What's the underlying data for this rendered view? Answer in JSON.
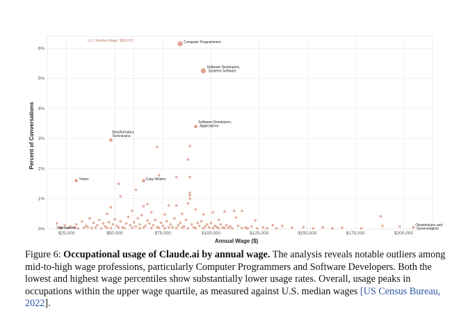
{
  "chart_data": {
    "type": "scatter",
    "xlabel": "Annual Wage ($)",
    "ylabel": "Percent of Conversations",
    "xlim": [
      15000,
      215000
    ],
    "ylim": [
      0,
      6.4
    ],
    "x_ticks": [
      25000,
      50000,
      75000,
      100000,
      125000,
      150000,
      175000,
      200000
    ],
    "x_tick_labels": [
      "$25,000",
      "$50,000",
      "$75,000",
      "$100,000",
      "$125,000",
      "$150,000",
      "$175,000",
      "$200,000"
    ],
    "y_ticks": [
      0,
      1,
      2,
      3,
      4,
      5,
      6
    ],
    "y_tick_labels": [
      "0%",
      "1%",
      "2%",
      "3%",
      "4%",
      "5%",
      "6%"
    ],
    "grid": true,
    "marker_color": "#d9917a",
    "median": {
      "x": 60070,
      "label": "U.S. Median Wage: $60,070",
      "color": "#c8795e"
    },
    "labeled_points": [
      {
        "label": "Computer Programmers",
        "x": 84000,
        "y": 6.15
      },
      {
        "label": "Software Developers, Systems Software",
        "x": 96000,
        "y": 5.25
      },
      {
        "label": "Software Developers, Applications",
        "x": 92000,
        "y": 3.4
      },
      {
        "label": "Bioinformatics Technicians",
        "x": 48000,
        "y": 2.95
      },
      {
        "label": "Copy Writers",
        "x": 65000,
        "y": 1.6
      },
      {
        "label": "Tutors",
        "x": 30000,
        "y": 1.6
      },
      {
        "label": "Shampooers",
        "x": 22000,
        "y": 0.02
      },
      {
        "label": "Obstetricians and Gynecologists",
        "x": 205000,
        "y": 0.05
      }
    ],
    "points": [
      [
        72000,
        2.72
      ],
      [
        89000,
        2.75
      ],
      [
        88000,
        2.3
      ],
      [
        82000,
        1.72
      ],
      [
        89000,
        1.72
      ],
      [
        73000,
        1.78
      ],
      [
        52000,
        1.5
      ],
      [
        61000,
        1.3
      ],
      [
        89000,
        1.2
      ],
      [
        89000,
        1.12
      ],
      [
        53000,
        1.08
      ],
      [
        89000,
        1.0
      ],
      [
        67000,
        0.82
      ],
      [
        65000,
        0.75
      ],
      [
        78000,
        0.78
      ],
      [
        82000,
        0.78
      ],
      [
        88000,
        0.85
      ],
      [
        92000,
        0.65
      ],
      [
        101000,
        0.55
      ],
      [
        107000,
        0.58
      ],
      [
        112000,
        0.6
      ],
      [
        116000,
        0.6
      ],
      [
        48000,
        0.72
      ],
      [
        46000,
        0.5
      ],
      [
        59000,
        0.6
      ],
      [
        69000,
        0.55
      ],
      [
        76000,
        0.48
      ],
      [
        85000,
        0.5
      ],
      [
        96000,
        0.48
      ],
      [
        104000,
        0.3
      ],
      [
        113000,
        0.38
      ],
      [
        123000,
        0.28
      ],
      [
        132000,
        0.12
      ],
      [
        137000,
        0.1
      ],
      [
        148000,
        0.06
      ],
      [
        158000,
        0.05
      ],
      [
        168000,
        0.04
      ],
      [
        188000,
        0.42
      ],
      [
        189000,
        0.1
      ],
      [
        198000,
        0.08
      ],
      [
        20000,
        0.18
      ],
      [
        24000,
        0.12
      ],
      [
        27000,
        0.08
      ],
      [
        30000,
        0.15
      ],
      [
        33000,
        0.25
      ],
      [
        35000,
        0.1
      ],
      [
        37000,
        0.35
      ],
      [
        39000,
        0.2
      ],
      [
        41000,
        0.12
      ],
      [
        42000,
        0.3
      ],
      [
        44000,
        0.18
      ],
      [
        45000,
        0.08
      ],
      [
        47000,
        0.22
      ],
      [
        49000,
        0.15
      ],
      [
        50000,
        0.32
      ],
      [
        51000,
        0.1
      ],
      [
        53000,
        0.25
      ],
      [
        54000,
        0.05
      ],
      [
        56000,
        0.18
      ],
      [
        57000,
        0.4
      ],
      [
        58000,
        0.12
      ],
      [
        60000,
        0.22
      ],
      [
        61000,
        0.08
      ],
      [
        62000,
        0.35
      ],
      [
        63000,
        0.15
      ],
      [
        64000,
        0.45
      ],
      [
        66000,
        0.1
      ],
      [
        67000,
        0.28
      ],
      [
        68000,
        0.18
      ],
      [
        70000,
        0.12
      ],
      [
        71000,
        0.3
      ],
      [
        72000,
        0.06
      ],
      [
        74000,
        0.2
      ],
      [
        75000,
        0.1
      ],
      [
        77000,
        0.25
      ],
      [
        79000,
        0.15
      ],
      [
        80000,
        0.05
      ],
      [
        81000,
        0.35
      ],
      [
        83000,
        0.12
      ],
      [
        84000,
        0.2
      ],
      [
        86000,
        0.08
      ],
      [
        87000,
        0.3
      ],
      [
        90000,
        0.15
      ],
      [
        91000,
        0.05
      ],
      [
        93000,
        0.2
      ],
      [
        94000,
        0.1
      ],
      [
        95000,
        0.25
      ],
      [
        97000,
        0.08
      ],
      [
        98000,
        0.15
      ],
      [
        99000,
        0.05
      ],
      [
        100000,
        0.2
      ],
      [
        102000,
        0.1
      ],
      [
        103000,
        0.06
      ],
      [
        105000,
        0.15
      ],
      [
        106000,
        0.05
      ],
      [
        108000,
        0.12
      ],
      [
        109000,
        0.04
      ],
      [
        110000,
        0.08
      ],
      [
        114000,
        0.1
      ],
      [
        118000,
        0.05
      ],
      [
        121000,
        0.08
      ],
      [
        127000,
        0.05
      ],
      [
        142000,
        0.04
      ],
      [
        22000,
        0.05
      ],
      [
        26000,
        0.03
      ],
      [
        29000,
        0.05
      ],
      [
        31000,
        0.02
      ],
      [
        34000,
        0.04
      ],
      [
        36000,
        0.06
      ],
      [
        38000,
        0.03
      ],
      [
        40000,
        0.05
      ],
      [
        43000,
        0.02
      ],
      [
        46000,
        0.04
      ],
      [
        48000,
        0.03
      ],
      [
        52000,
        0.05
      ],
      [
        55000,
        0.03
      ],
      [
        59000,
        0.04
      ],
      [
        63000,
        0.02
      ],
      [
        65000,
        0.05
      ],
      [
        69000,
        0.03
      ],
      [
        73000,
        0.04
      ],
      [
        76000,
        0.02
      ],
      [
        78000,
        0.05
      ],
      [
        82000,
        0.03
      ],
      [
        85000,
        0.04
      ],
      [
        88000,
        0.02
      ],
      [
        92000,
        0.03
      ],
      [
        96000,
        0.02
      ],
      [
        101000,
        0.03
      ],
      [
        104000,
        0.02
      ],
      [
        107000,
        0.03
      ],
      [
        111000,
        0.02
      ],
      [
        116000,
        0.03
      ],
      [
        119000,
        0.02
      ],
      [
        124000,
        0.02
      ],
      [
        129000,
        0.02
      ],
      [
        134000,
        0.02
      ],
      [
        153000,
        0.02
      ],
      [
        163000,
        0.02
      ],
      [
        178000,
        0.02
      ]
    ]
  },
  "caption": {
    "figure_number": "Figure 6:",
    "title": "Occupational usage of Claude.ai by annual wage.",
    "body": "The analysis reveals notable outliers among mid-to-high wage professions, particularly Computer Programmers and Software Developers. Both the lowest and highest wage percentiles show substantially lower usage rates. Overall, usage peaks in occupations within the upper wage quartile, as measured against U.S. median wages",
    "citation": "US Census Bureau, 2022",
    "open_bracket": " [",
    "close_bracket": "]."
  }
}
